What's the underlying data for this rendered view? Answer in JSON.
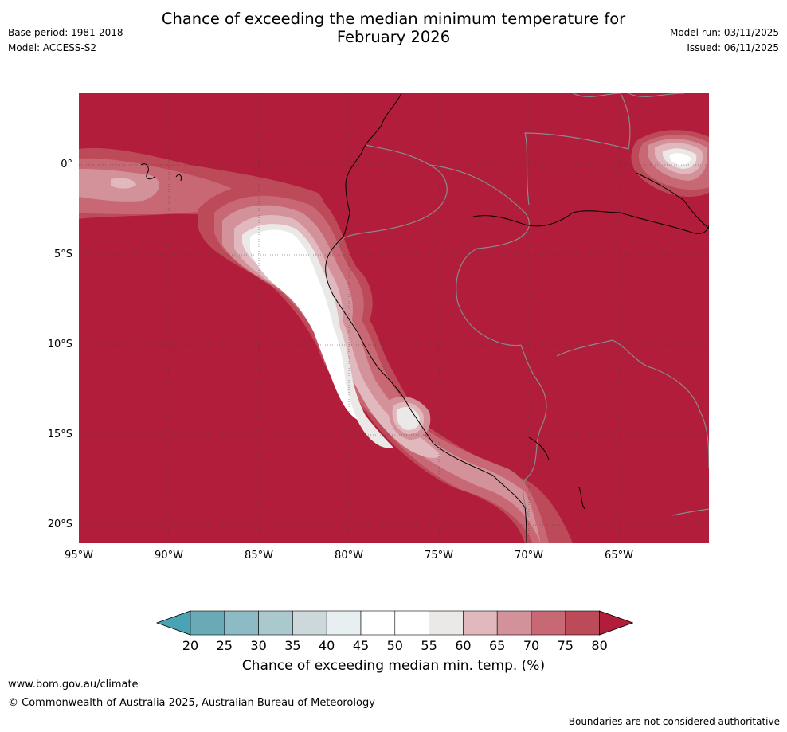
{
  "title": {
    "line1": "Chance of exceeding the median minimum temperature for",
    "line2": "February 2026"
  },
  "meta": {
    "base_period": "Base period: 1981-2018",
    "model": "Model: ACCESS-S2",
    "model_run": "Model run: 03/11/2025",
    "issued": "Issued: 06/11/2025"
  },
  "map": {
    "lat_labels": [
      "0°",
      "5°S",
      "10°S",
      "15°S",
      "20°S"
    ],
    "lon_labels": [
      "95°W",
      "90°W",
      "85°W",
      "80°W",
      "75°W",
      "70°W",
      "65°W"
    ],
    "background_color": "#b11d3a"
  },
  "colorbar": {
    "title": "Chance of exceeding median min. temp. (%)",
    "ticks": [
      "20",
      "25",
      "30",
      "35",
      "40",
      "45",
      "50",
      "55",
      "60",
      "65",
      "70",
      "75",
      "80"
    ],
    "colors": [
      "#48a4b4",
      "#6aaab7",
      "#8cbbc5",
      "#a9c9ce",
      "#cdd8db",
      "#e8eff1",
      "#ffffff",
      "#ffffff",
      "#ebe9e8",
      "#e0b8bd",
      "#d3919a",
      "#c76874",
      "#bd4a58",
      "#b11d3a"
    ]
  },
  "footer": {
    "url": "www.bom.gov.au/climate",
    "copyright": "© Commonwealth of Australia 2025, Australian Bureau of Meteorology",
    "note": "Boundaries are not considered authoritative"
  }
}
